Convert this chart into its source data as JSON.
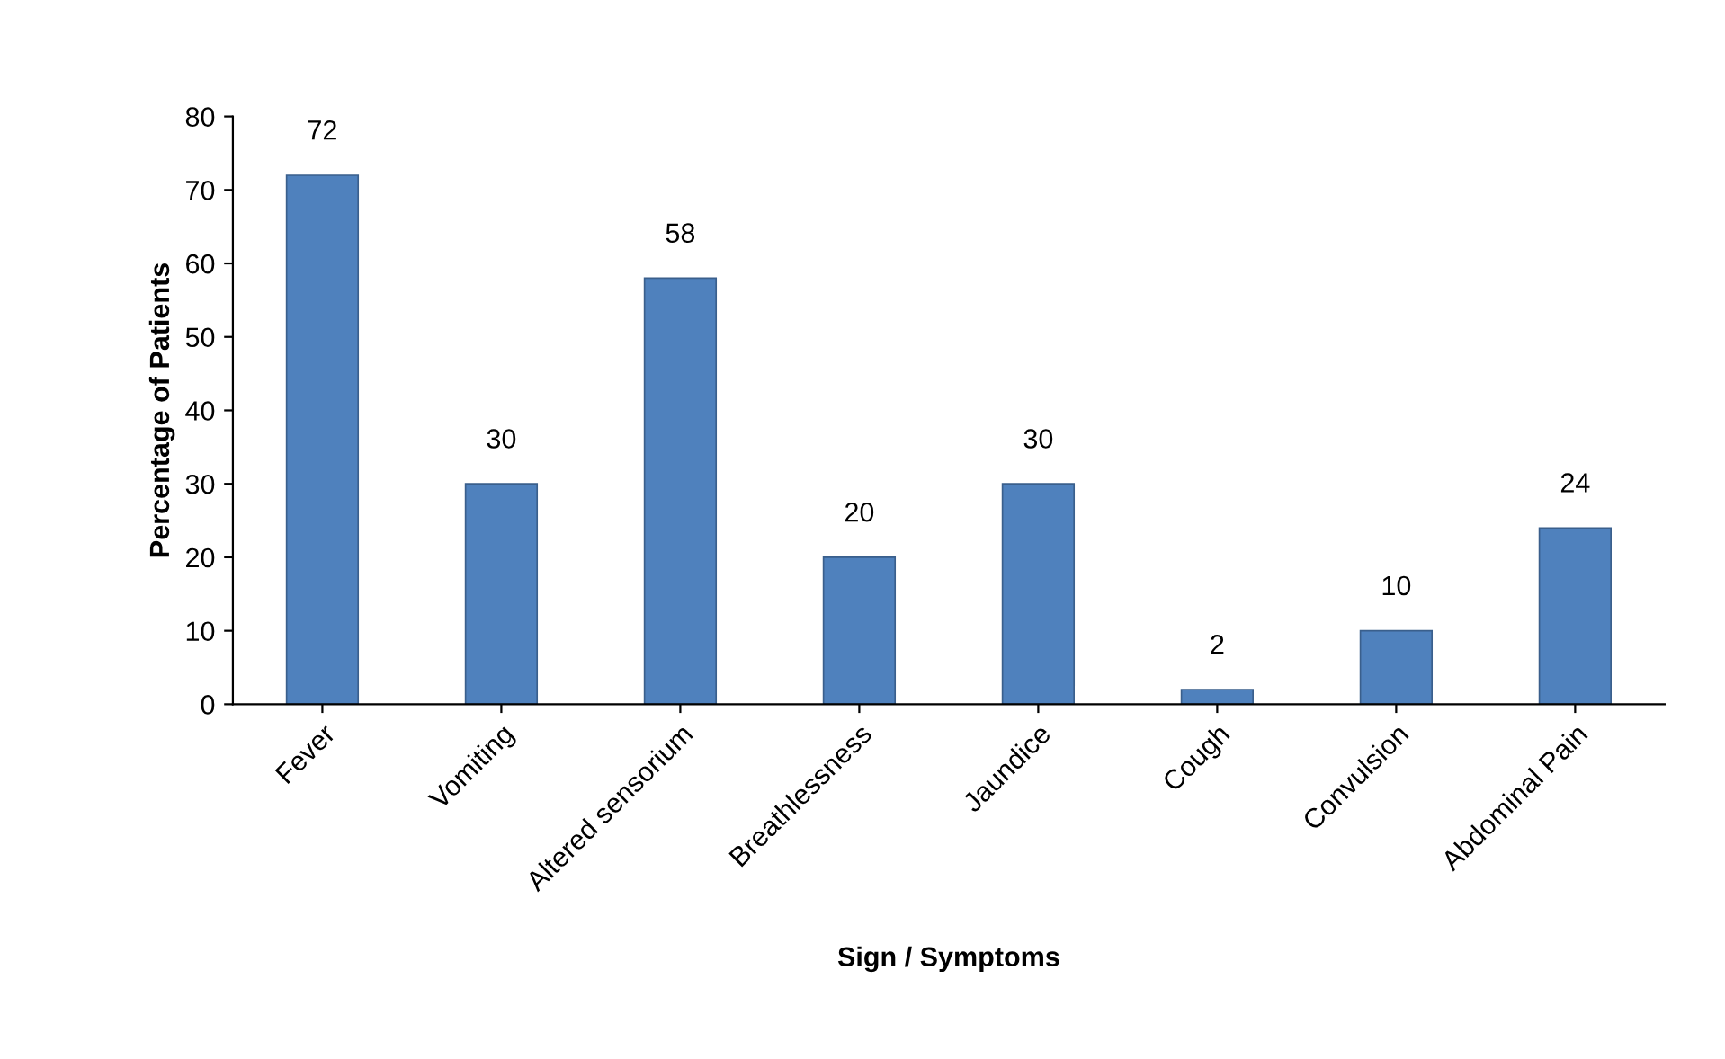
{
  "chart_data": {
    "type": "bar",
    "xlabel": "Sign / Symptoms",
    "ylabel": "Percentage of Patients",
    "categories": [
      "Fever",
      "Vomiting",
      "Altered sensorium",
      "Breathlessness",
      "Jaundice",
      "Cough",
      "Convulsion",
      "Abdominal Pain"
    ],
    "values": [
      72,
      30,
      58,
      20,
      30,
      2,
      10,
      24
    ],
    "color": "#4f81bd",
    "ylim": [
      0,
      80
    ],
    "yticks": [
      0,
      10,
      20,
      30,
      40,
      50,
      60,
      70,
      80
    ],
    "grid": false,
    "data_labels": true
  }
}
